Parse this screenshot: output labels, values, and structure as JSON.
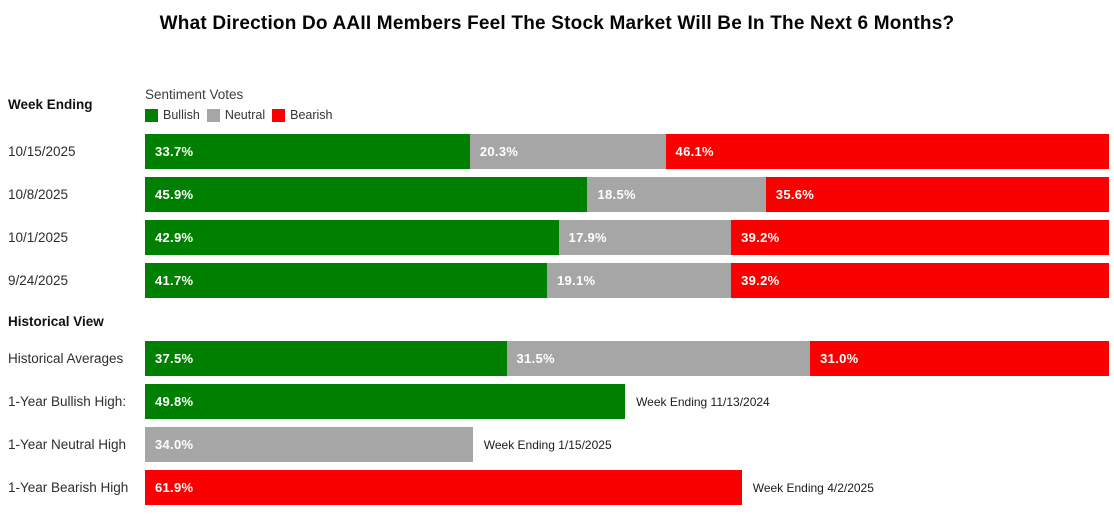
{
  "title": "What Direction Do AAII Members Feel The Stock Market Will Be In The Next 6 Months?",
  "colors": {
    "bullish": "#008000",
    "neutral": "#a6a6a6",
    "bearish": "#fa0000"
  },
  "headers": {
    "week_ending": "Week Ending",
    "historical_view": "Historical View"
  },
  "legend": {
    "title": "Sentiment Votes",
    "items": [
      {
        "label": "Bullish",
        "color_key": "bullish"
      },
      {
        "label": "Neutral",
        "color_key": "neutral"
      },
      {
        "label": "Bearish",
        "color_key": "bearish"
      }
    ]
  },
  "chart_data": {
    "type": "bar",
    "orientation": "horizontal",
    "stacked": true,
    "unit": "%",
    "xlim": [
      0,
      100
    ],
    "series": [
      "Bullish",
      "Neutral",
      "Bearish"
    ],
    "weekly": [
      {
        "label": "10/15/2025",
        "bullish": 33.7,
        "neutral": 20.3,
        "bearish": 46.1
      },
      {
        "label": "10/8/2025",
        "bullish": 45.9,
        "neutral": 18.5,
        "bearish": 35.6
      },
      {
        "label": "10/1/2025",
        "bullish": 42.9,
        "neutral": 17.9,
        "bearish": 39.2
      },
      {
        "label": "9/24/2025",
        "bullish": 41.7,
        "neutral": 19.1,
        "bearish": 39.2
      }
    ],
    "historical_averages": {
      "label": "Historical Averages",
      "bullish": 37.5,
      "neutral": 31.5,
      "bearish": 31.0
    },
    "one_year_highs": [
      {
        "label": "1-Year Bullish High:",
        "series": "bullish",
        "value": 49.8,
        "annotation": "Week Ending 11/13/2024"
      },
      {
        "label": "1-Year Neutral High",
        "series": "neutral",
        "value": 34.0,
        "annotation": "Week Ending 1/15/2025"
      },
      {
        "label": "1-Year Bearish High",
        "series": "bearish",
        "value": 61.9,
        "annotation": "Week Ending 4/2/2025"
      }
    ]
  }
}
